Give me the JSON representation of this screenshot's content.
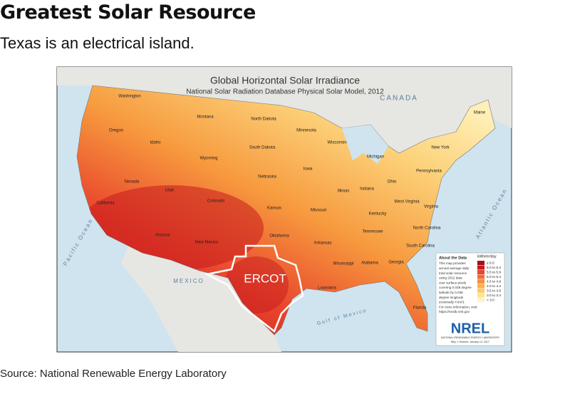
{
  "header": {
    "title": "Greatest Solar Resource",
    "subtitle": "Texas is an electrical island."
  },
  "map": {
    "title": "Global Horizontal Solar Irradiance",
    "subtitle": "National Solar Radiation Database Physical Solar Model, 2012",
    "states": [
      "Washington",
      "Oregon",
      "Idaho",
      "Montana",
      "Wyoming",
      "North Dakota",
      "South Dakota",
      "Nebraska",
      "Minnesota",
      "Wisconsin",
      "Michigan",
      "Iowa",
      "Illinois",
      "Indiana",
      "Ohio",
      "Pennsylvania",
      "New York",
      "Maine",
      "California",
      "Nevada",
      "Utah",
      "Colorado",
      "Kansas",
      "Missouri",
      "Kentucky",
      "West Virginia",
      "Virginia",
      "Tennessee",
      "North Carolina",
      "Arizona",
      "New Mexico",
      "Oklahoma",
      "Arkansas",
      "Mississippi",
      "Alabama",
      "Georgia",
      "South Carolina",
      "Louisiana",
      "Florida"
    ],
    "regions": [
      "CANADA",
      "MEXICO",
      "Pacific Ocean",
      "Atlantic Ocean",
      "Gulf of Mexico"
    ],
    "highlight": "ERCOT",
    "about": {
      "title": "About the Data",
      "lines": [
        "This map provides",
        "annual average daily",
        "total solar resource",
        "using 2012 data",
        "over surface pixels",
        "covering 0.038 degree",
        "latitude by 0.038",
        "degree longitude",
        "(nominally 4 km²).",
        "For more information, visit:",
        "https://nsrdb.nrel.gov"
      ]
    },
    "legend": {
      "unit": "kWh/m²/day",
      "items": [
        {
          "label": "≥ 6.5",
          "color": "#a50f15"
        },
        {
          "label": "6.0 to 6.4",
          "color": "#cb181d"
        },
        {
          "label": "5.5 to 5.9",
          "color": "#e34a33"
        },
        {
          "label": "5.0 to 5.4",
          "color": "#f26b36"
        },
        {
          "label": "4.5 to 4.9",
          "color": "#f7913d"
        },
        {
          "label": "4.0 to 4.4",
          "color": "#fbb04f"
        },
        {
          "label": "3.5 to 3.9",
          "color": "#fdcc6a"
        },
        {
          "label": "3.0 to 3.4",
          "color": "#fee391"
        },
        {
          "label": "< 3.0",
          "color": "#fff3c0"
        }
      ]
    },
    "logo": "NREL",
    "lab": "NATIONAL RENEWABLE ENERGY LABORATORY",
    "credit": "Billy J. Roberts, January 13, 2017"
  },
  "footer": {
    "source": "Source: National Renewable Energy Laboratory"
  }
}
